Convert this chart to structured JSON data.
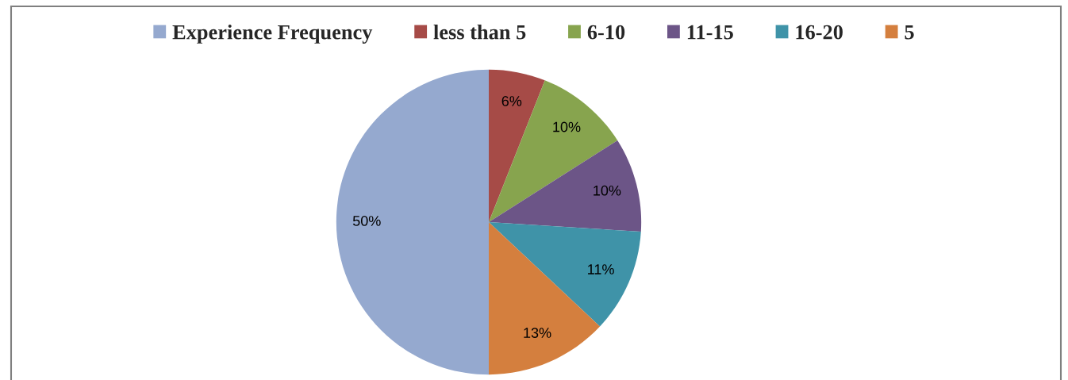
{
  "chart_data": {
    "type": "pie",
    "categories": [
      "Experience Frequency",
      "less than 5",
      "6-10",
      "11-15",
      "16-20",
      "5"
    ],
    "values": [
      50,
      6,
      10,
      10,
      11,
      13
    ],
    "value_labels": [
      "50%",
      "6%",
      "10%",
      "10%",
      "11%",
      "13%"
    ],
    "colors": [
      "#95a9cf",
      "#a64b47",
      "#87a44e",
      "#6c5587",
      "#3f93a8",
      "#d47f3e"
    ],
    "legend": "top"
  }
}
